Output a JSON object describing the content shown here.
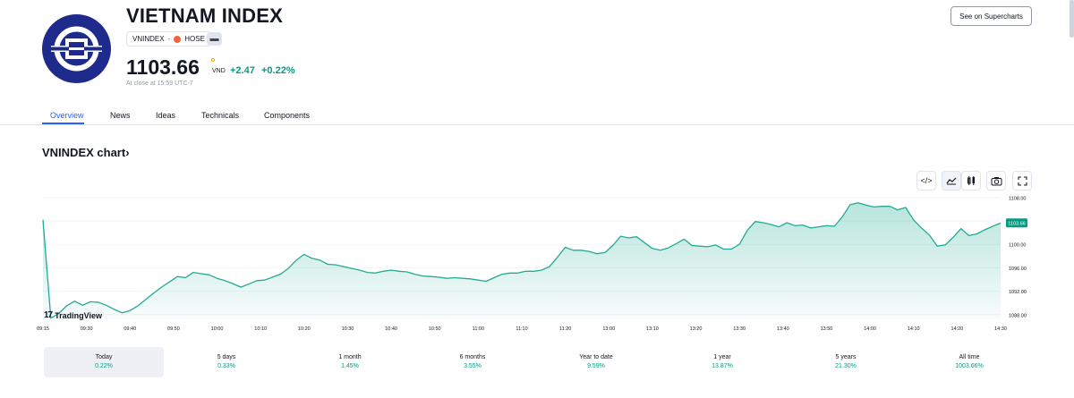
{
  "header": {
    "title": "VIETNAM INDEX",
    "symbol": "VNINDEX",
    "separator": "·",
    "exchange": "HOSE",
    "price": "1103.66",
    "currency": "VND",
    "change": "+2.47",
    "change_pct": "+0.22%",
    "close_note": "At close at 15:59 UTC-7",
    "supercharts_label": "See on Supercharts"
  },
  "tabs": [
    "Overview",
    "News",
    "Ideas",
    "Technicals",
    "Components"
  ],
  "chart_heading": "VNINDEX chart›",
  "toolbar": {
    "embed_icon": "code-icon",
    "line_icon": "area-chart-icon",
    "candle_icon": "candles-icon",
    "camera_icon": "camera-icon",
    "fullscreen_icon": "fullscreen-icon"
  },
  "brand": {
    "mark": "17",
    "name": "TradingView"
  },
  "colors": {
    "accent": "#2962ff",
    "up": "#089981",
    "line": "#22ab94",
    "logo_bg": "#1e2a8c"
  },
  "chart_data": {
    "type": "area",
    "x_ticks": [
      "09:15",
      "09:30",
      "09:40",
      "09:50",
      "10:00",
      "10:10",
      "10:20",
      "10:30",
      "10:40",
      "10:50",
      "11:00",
      "11:10",
      "11:20",
      "13:00",
      "13:10",
      "13:20",
      "13:30",
      "13:40",
      "13:50",
      "14:00",
      "14:10",
      "14:20",
      "14:30"
    ],
    "y_ticks": [
      "1088.00",
      "1092.00",
      "1096.00",
      "1100.00",
      "1104.00",
      "1108.00"
    ],
    "ylim": [
      1087.2,
      1108.9
    ],
    "last_label": "1103.66",
    "values": [
      1104.2,
      1087.4,
      1088.2,
      1089.5,
      1090.3,
      1089.6,
      1090.2,
      1090.1,
      1089.6,
      1088.9,
      1088.3,
      1088.7,
      1089.5,
      1090.6,
      1091.7,
      1092.7,
      1093.6,
      1094.5,
      1094.3,
      1095.2,
      1095.0,
      1094.8,
      1094.2,
      1093.8,
      1093.3,
      1092.7,
      1093.2,
      1093.8,
      1093.9,
      1094.4,
      1094.9,
      1095.9,
      1097.3,
      1098.3,
      1097.6,
      1097.3,
      1096.6,
      1096.5,
      1096.2,
      1095.9,
      1095.6,
      1095.2,
      1095.1,
      1095.4,
      1095.6,
      1095.4,
      1095.3,
      1094.9,
      1094.6,
      1094.5,
      1094.4,
      1094.2,
      1094.3,
      1094.2,
      1094.1,
      1093.9,
      1093.7,
      1094.3,
      1094.9,
      1095.1,
      1095.1,
      1095.4,
      1095.4,
      1095.6,
      1096.2,
      1097.8,
      1099.5,
      1099.0,
      1099.0,
      1098.8,
      1098.4,
      1098.6,
      1099.8,
      1101.4,
      1101.1,
      1101.3,
      1100.3,
      1099.3,
      1099.0,
      1099.4,
      1100.1,
      1100.9,
      1099.8,
      1099.7,
      1099.6,
      1099.9,
      1099.2,
      1099.2,
      1100.0,
      1102.4,
      1103.9,
      1103.7,
      1103.4,
      1103.0,
      1103.7,
      1103.2,
      1103.3,
      1102.8,
      1103.0,
      1103.2,
      1103.1,
      1104.7,
      1106.8,
      1107.1,
      1106.7,
      1106.4,
      1106.5,
      1106.5,
      1105.9,
      1106.3,
      1104.2,
      1102.8,
      1101.6,
      1099.7,
      1099.9,
      1101.2,
      1102.7,
      1101.5,
      1101.8,
      1102.5,
      1103.1,
      1103.66
    ]
  },
  "periods": [
    {
      "label": "Today",
      "value": "0.22%"
    },
    {
      "label": "5 days",
      "value": "0.33%"
    },
    {
      "label": "1 month",
      "value": "1.45%"
    },
    {
      "label": "6 months",
      "value": "3.55%"
    },
    {
      "label": "Year to date",
      "value": "9.59%"
    },
    {
      "label": "1 year",
      "value": "13.87%"
    },
    {
      "label": "5 years",
      "value": "21.30%"
    },
    {
      "label": "All time",
      "value": "1003.66%"
    }
  ]
}
